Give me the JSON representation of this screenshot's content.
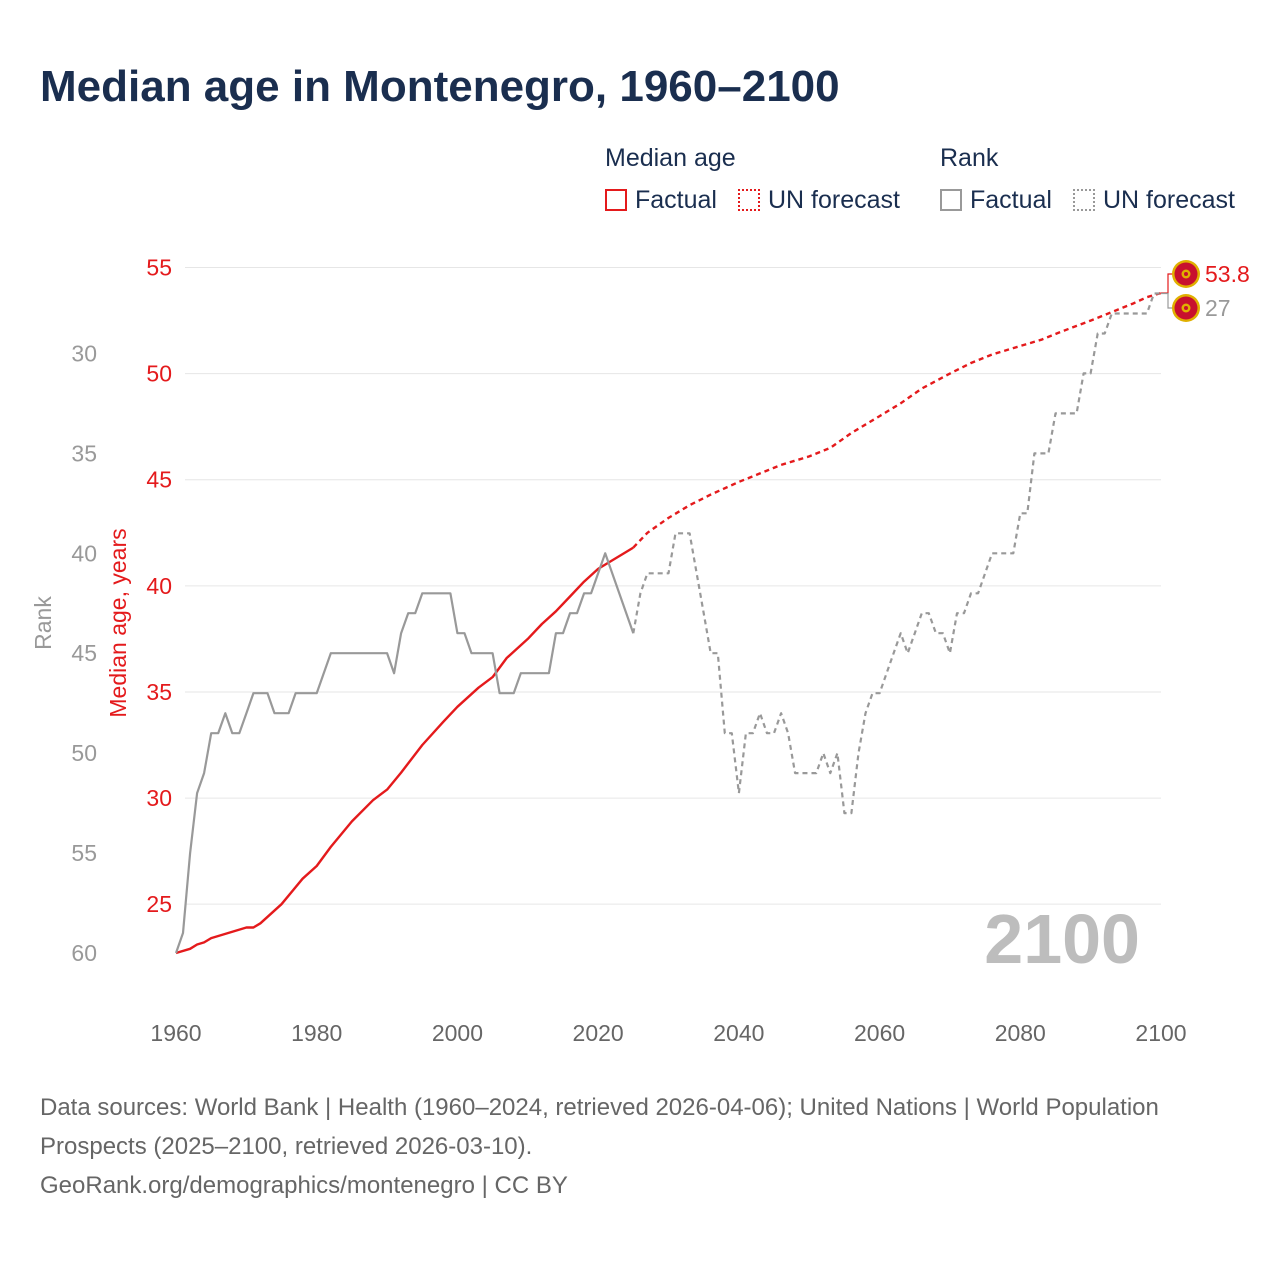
{
  "header": {
    "title": "Median age in Montenegro, 1960–2100"
  },
  "legend": {
    "median_title": "Median age",
    "rank_title": "Rank",
    "median_factual": "Factual",
    "median_forecast": "UN forecast",
    "rank_factual": "Factual",
    "rank_forecast": "UN forecast"
  },
  "colors": {
    "median": "#e41a1c",
    "rank": "#999999",
    "title": "#1a2e4f",
    "watermark": "#bdbdbd",
    "flag_red": "#c8102e",
    "flag_gold": "#e0b000"
  },
  "icons": {
    "end_marker": "montenegro-flag-icon"
  },
  "footer": {
    "sources": "Data sources: World Bank | Health (1960–2024, retrieved 2026-04-06); United Nations | World Population Prospects (2025–2100, retrieved 2026-03-10).",
    "credit": "GeoRank.org/demographics/montenegro | CC BY"
  },
  "chart_data": {
    "type": "line",
    "title": "Median age in Montenegro, 1960–2100",
    "xlabel": "",
    "ylabel_left_inner": "Median age, years",
    "ylabel_left_outer": "Rank",
    "year_label": "2100",
    "end_labels": {
      "median": "53.8",
      "rank": "27"
    },
    "x_ticks": [
      "1960",
      "1980",
      "2000",
      "2020",
      "2040",
      "2060",
      "2080",
      "2100"
    ],
    "median_axis": {
      "ticks": [
        "25",
        "30",
        "35",
        "40",
        "45",
        "50",
        "55"
      ],
      "ylim": [
        22.7,
        55
      ]
    },
    "rank_axis": {
      "ticks": [
        "30",
        "35",
        "40",
        "45",
        "50",
        "55",
        "60"
      ],
      "ylim": [
        25.7,
        60
      ]
    },
    "x_range": [
      1960,
      2100
    ],
    "series": [
      {
        "name": "Median age (Factual)",
        "values": [
          [
            1960,
            22.7
          ],
          [
            1962,
            22.9
          ],
          [
            1963,
            23.1
          ],
          [
            1964,
            23.2
          ],
          [
            1965,
            23.4
          ],
          [
            1967,
            23.6
          ],
          [
            1970,
            23.9
          ],
          [
            1971,
            23.9
          ],
          [
            1972,
            24.1
          ],
          [
            1975,
            25.0
          ],
          [
            1978,
            26.2
          ],
          [
            1980,
            26.8
          ],
          [
            1982,
            27.7
          ],
          [
            1985,
            28.9
          ],
          [
            1988,
            29.9
          ],
          [
            1990,
            30.4
          ],
          [
            1992,
            31.2
          ],
          [
            1995,
            32.5
          ],
          [
            1998,
            33.6
          ],
          [
            2000,
            34.3
          ],
          [
            2003,
            35.2
          ],
          [
            2005,
            35.7
          ],
          [
            2007,
            36.6
          ],
          [
            2010,
            37.5
          ],
          [
            2012,
            38.2
          ],
          [
            2014,
            38.8
          ],
          [
            2016,
            39.5
          ],
          [
            2018,
            40.2
          ],
          [
            2020,
            40.8
          ],
          [
            2022,
            41.2
          ],
          [
            2024,
            41.6
          ],
          [
            2025,
            41.8
          ]
        ]
      },
      {
        "name": "Median age (UN forecast)",
        "values": [
          [
            2025,
            41.8
          ],
          [
            2027,
            42.5
          ],
          [
            2030,
            43.2
          ],
          [
            2033,
            43.8
          ],
          [
            2036,
            44.3
          ],
          [
            2040,
            44.9
          ],
          [
            2043,
            45.3
          ],
          [
            2046,
            45.7
          ],
          [
            2050,
            46.1
          ],
          [
            2053,
            46.5
          ],
          [
            2056,
            47.2
          ],
          [
            2060,
            48.0
          ],
          [
            2063,
            48.6
          ],
          [
            2066,
            49.3
          ],
          [
            2070,
            50.0
          ],
          [
            2073,
            50.5
          ],
          [
            2076,
            50.9
          ],
          [
            2080,
            51.3
          ],
          [
            2083,
            51.6
          ],
          [
            2086,
            52.0
          ],
          [
            2090,
            52.5
          ],
          [
            2093,
            52.9
          ],
          [
            2096,
            53.3
          ],
          [
            2098,
            53.6
          ],
          [
            2100,
            53.8
          ]
        ]
      },
      {
        "name": "Rank (Factual)",
        "values": [
          [
            1960,
            60
          ],
          [
            1961,
            59
          ],
          [
            1962,
            55
          ],
          [
            1963,
            52
          ],
          [
            1964,
            51
          ],
          [
            1965,
            49
          ],
          [
            1966,
            49
          ],
          [
            1967,
            48
          ],
          [
            1968,
            49
          ],
          [
            1969,
            49
          ],
          [
            1970,
            48
          ],
          [
            1971,
            47
          ],
          [
            1973,
            47
          ],
          [
            1974,
            48
          ],
          [
            1976,
            48
          ],
          [
            1977,
            47
          ],
          [
            1980,
            47
          ],
          [
            1982,
            45
          ],
          [
            1990,
            45
          ],
          [
            1991,
            46
          ],
          [
            1992,
            44
          ],
          [
            1993,
            43
          ],
          [
            1994,
            43
          ],
          [
            1995,
            42
          ],
          [
            1999,
            42
          ],
          [
            2000,
            44
          ],
          [
            2001,
            44
          ],
          [
            2002,
            45
          ],
          [
            2005,
            45
          ],
          [
            2006,
            47
          ],
          [
            2008,
            47
          ],
          [
            2009,
            46
          ],
          [
            2013,
            46
          ],
          [
            2014,
            44
          ],
          [
            2015,
            44
          ],
          [
            2016,
            43
          ],
          [
            2017,
            43
          ],
          [
            2018,
            42
          ],
          [
            2019,
            42
          ],
          [
            2021,
            40
          ],
          [
            2025,
            44
          ]
        ]
      },
      {
        "name": "Rank (UN forecast)",
        "values": [
          [
            2025,
            44
          ],
          [
            2026,
            42
          ],
          [
            2027,
            41
          ],
          [
            2028,
            41
          ],
          [
            2030,
            41
          ],
          [
            2031,
            39
          ],
          [
            2033,
            39
          ],
          [
            2035,
            43
          ],
          [
            2036,
            45
          ],
          [
            2037,
            45
          ],
          [
            2038,
            49
          ],
          [
            2039,
            49
          ],
          [
            2040,
            52
          ],
          [
            2041,
            49
          ],
          [
            2042,
            49
          ],
          [
            2043,
            48
          ],
          [
            2044,
            49
          ],
          [
            2045,
            49
          ],
          [
            2046,
            48
          ],
          [
            2047,
            49
          ],
          [
            2048,
            51
          ],
          [
            2051,
            51
          ],
          [
            2052,
            50
          ],
          [
            2053,
            51
          ],
          [
            2054,
            50
          ],
          [
            2055,
            53
          ],
          [
            2056,
            53
          ],
          [
            2057,
            50
          ],
          [
            2058,
            48
          ],
          [
            2059,
            47
          ],
          [
            2060,
            47
          ],
          [
            2061,
            46
          ],
          [
            2062,
            45
          ],
          [
            2063,
            44
          ],
          [
            2064,
            45
          ],
          [
            2065,
            44
          ],
          [
            2066,
            43
          ],
          [
            2067,
            43
          ],
          [
            2068,
            44
          ],
          [
            2069,
            44
          ],
          [
            2070,
            45
          ],
          [
            2071,
            43
          ],
          [
            2072,
            43
          ],
          [
            2073,
            42
          ],
          [
            2074,
            42
          ],
          [
            2075,
            41
          ],
          [
            2076,
            40
          ],
          [
            2079,
            40
          ],
          [
            2080,
            38
          ],
          [
            2081,
            38
          ],
          [
            2082,
            35
          ],
          [
            2084,
            35
          ],
          [
            2085,
            33
          ],
          [
            2088,
            33
          ],
          [
            2089,
            31
          ],
          [
            2090,
            31
          ],
          [
            2091,
            29
          ],
          [
            2092,
            29
          ],
          [
            2093,
            28
          ],
          [
            2098,
            28
          ],
          [
            2099,
            27
          ],
          [
            2100,
            27
          ]
        ]
      }
    ]
  }
}
